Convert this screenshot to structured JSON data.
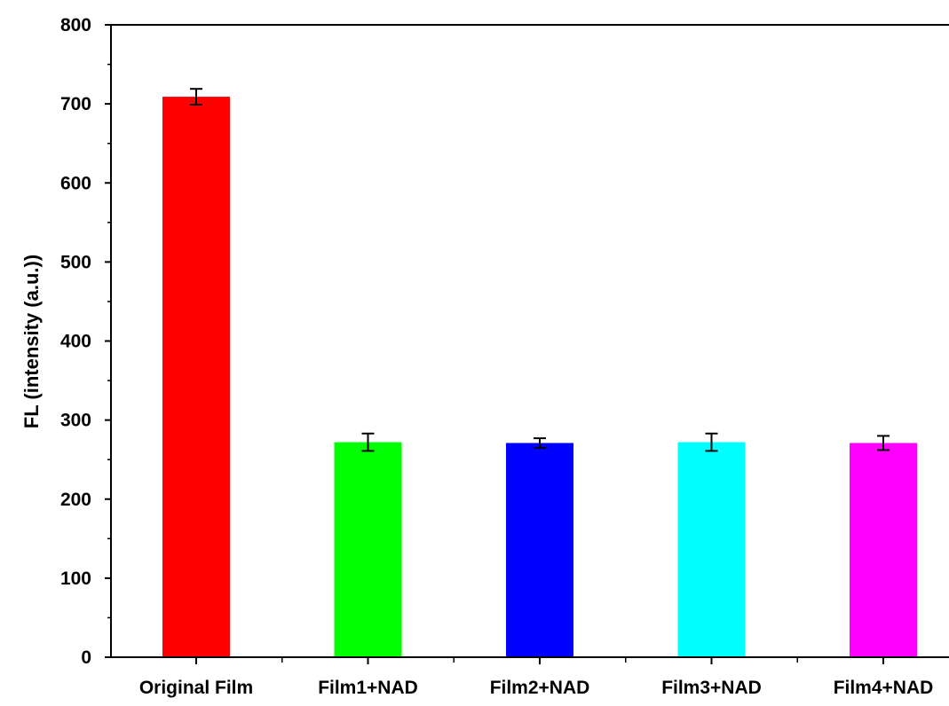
{
  "chart_data": {
    "type": "bar",
    "title": "",
    "xlabel": "",
    "ylabel": "FL (intensity (a.u.))",
    "ylim": [
      0,
      800
    ],
    "yticks": [
      0,
      100,
      200,
      300,
      400,
      500,
      600,
      700,
      800
    ],
    "categories": [
      "Original Film",
      "Film1+NAD",
      "Film2+NAD",
      "Film3+NAD",
      "Film4+NAD"
    ],
    "values": [
      709,
      272,
      271,
      272,
      271
    ],
    "errors": [
      10,
      11,
      6,
      11,
      9
    ],
    "colors": [
      "#ff0000",
      "#00ff00",
      "#0000ff",
      "#00ffff",
      "#ff00ff"
    ],
    "grid": false,
    "legend": "none"
  }
}
